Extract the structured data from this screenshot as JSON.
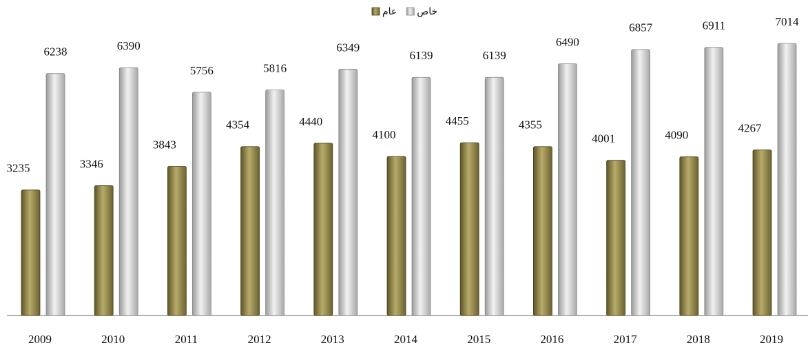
{
  "chart_data": {
    "type": "bar",
    "categories": [
      "2009",
      "2010",
      "2011",
      "2012",
      "2013",
      "2014",
      "2015",
      "2016",
      "2017",
      "2018",
      "2019"
    ],
    "series": [
      {
        "name": "عام",
        "color": "#8a7f45",
        "values": [
          3235,
          3346,
          3843,
          4354,
          4440,
          4100,
          4455,
          4355,
          4001,
          4090,
          4267
        ]
      },
      {
        "name": "خاص",
        "color": "#c4c4c4",
        "values": [
          6238,
          6390,
          5756,
          5816,
          6349,
          6139,
          6139,
          6490,
          6857,
          6911,
          7014
        ]
      }
    ],
    "legend": "top"
  }
}
